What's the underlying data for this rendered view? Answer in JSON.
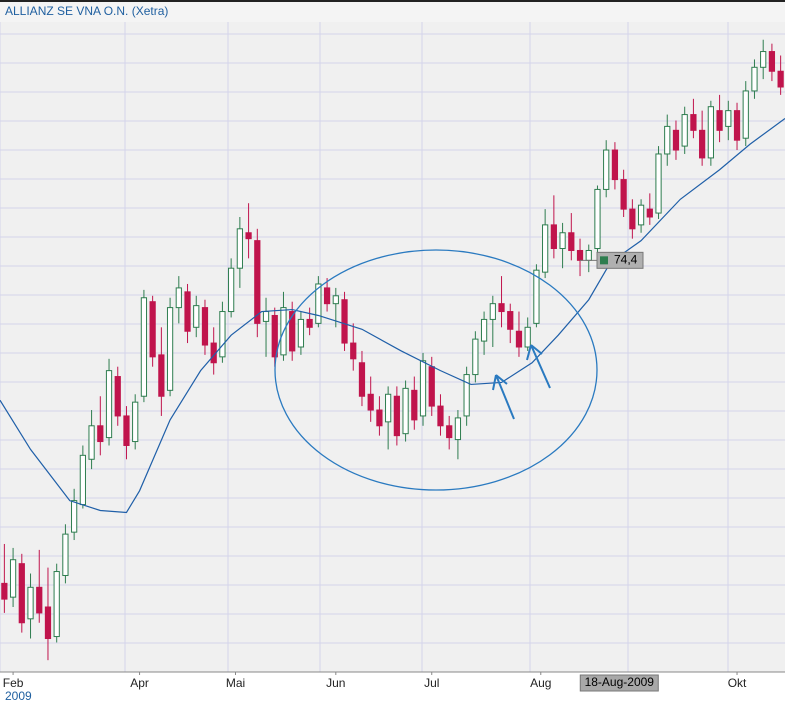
{
  "chart_data": {
    "type": "candlestick",
    "title": "ALLIANZ SE VNA O.N. (Xetra)",
    "xlim": [
      0,
      180
    ],
    "ylim": [
      53.5,
      86.5
    ],
    "xticks": [
      {
        "value": 3,
        "label": "Feb"
      },
      {
        "value": 32,
        "label": "Apr"
      },
      {
        "value": 54,
        "label": "Mai"
      },
      {
        "value": 77,
        "label": "Jun"
      },
      {
        "value": 99,
        "label": "Jul"
      },
      {
        "value": 124,
        "label": "Aug"
      },
      {
        "value": 169,
        "label": "Okt"
      }
    ],
    "year_label": "2009",
    "up_color": "#2e7d4f",
    "down_color": "#c0144c",
    "x": [
      1,
      3,
      5,
      7,
      9,
      11,
      13,
      15,
      17,
      19,
      21,
      23,
      25,
      27,
      29,
      31,
      33,
      35,
      37,
      39,
      41,
      43,
      45,
      47,
      49,
      51,
      53,
      55,
      57,
      59,
      61,
      63,
      65,
      67,
      69,
      71,
      73,
      75,
      77,
      79,
      81,
      83,
      85,
      87,
      89,
      91,
      93,
      95,
      97,
      99,
      101,
      103,
      105,
      107,
      109,
      111,
      113,
      115,
      117,
      119,
      121,
      123,
      125,
      127,
      129,
      131,
      133,
      135,
      137,
      139,
      141,
      143,
      145,
      147,
      149,
      151,
      153,
      155,
      157,
      159,
      161,
      163,
      165,
      167,
      169,
      171,
      173,
      175,
      177,
      179
    ],
    "open": [
      58.0,
      57.3,
      59.0,
      56.2,
      57.8,
      56.8,
      55.3,
      58.4,
      60.6,
      62.0,
      64.3,
      66.0,
      65.4,
      68.5,
      66.5,
      65.2,
      67.5,
      72.3,
      69.6,
      67.8,
      72.0,
      72.8,
      71.0,
      72.0,
      70.2,
      69.5,
      71.8,
      74.0,
      75.8,
      75.4,
      71.3,
      71.6,
      69.6,
      71.8,
      70.0,
      71.4,
      71.2,
      73.0,
      72.2,
      72.4,
      70.2,
      69.2,
      67.6,
      66.8,
      66.2,
      67.5,
      65.6,
      67.8,
      66.5,
      69.0,
      67.0,
      66.0,
      65.3,
      66.5,
      68.6,
      70.3,
      71.4,
      72.2,
      71.8,
      70.8,
      70.0,
      71.2,
      73.8,
      76.2,
      75.0,
      75.8,
      74.9,
      74.4,
      75.0,
      78.0,
      80.0,
      78.5,
      77.0,
      76.2,
      77.0,
      76.8,
      79.8,
      81.0,
      80.2,
      81.8,
      81.0,
      79.6,
      82.0,
      81.2,
      82.0,
      80.6,
      83.0,
      84.2,
      85.0,
      84.0
    ],
    "high": [
      60.0,
      59.8,
      59.5,
      58.5,
      59.7,
      58.8,
      59.0,
      61.0,
      62.8,
      65.0,
      66.8,
      67.5,
      69.4,
      69.0,
      67.0,
      67.6,
      72.9,
      72.6,
      71.0,
      72.5,
      73.6,
      73.2,
      72.6,
      72.4,
      71.0,
      72.3,
      74.5,
      76.6,
      77.3,
      76.0,
      72.5,
      72.0,
      72.8,
      72.3,
      71.8,
      72.0,
      73.6,
      73.5,
      73.0,
      72.8,
      71.2,
      69.8,
      68.5,
      67.5,
      68.0,
      68.0,
      68.3,
      68.5,
      69.7,
      69.5,
      67.6,
      66.5,
      66.8,
      69.0,
      70.8,
      71.8,
      72.6,
      73.6,
      72.2,
      71.8,
      71.5,
      74.2,
      77.0,
      77.7,
      76.3,
      76.8,
      75.5,
      75.2,
      78.2,
      80.5,
      80.4,
      79.0,
      77.5,
      77.5,
      77.8,
      80.2,
      81.8,
      81.5,
      82.2,
      82.6,
      82.0,
      82.5,
      82.8,
      82.5,
      82.4,
      83.5,
      84.6,
      85.6,
      85.4,
      84.8
    ],
    "low": [
      56.5,
      56.8,
      55.5,
      55.2,
      56.0,
      54.1,
      55.0,
      58.0,
      60.2,
      61.8,
      63.8,
      64.5,
      65.0,
      66.0,
      64.3,
      64.8,
      67.2,
      69.0,
      66.5,
      67.5,
      71.2,
      70.2,
      70.5,
      69.6,
      68.6,
      69.2,
      71.5,
      73.0,
      74.5,
      70.5,
      69.5,
      69.0,
      69.3,
      69.3,
      69.6,
      70.6,
      71.0,
      71.8,
      71.0,
      69.8,
      68.8,
      67.0,
      66.2,
      65.5,
      64.8,
      65.0,
      65.2,
      65.8,
      66.0,
      66.5,
      65.5,
      64.8,
      64.3,
      66.0,
      68.2,
      69.6,
      70.0,
      71.0,
      70.2,
      69.5,
      69.8,
      71.0,
      73.5,
      74.5,
      74.0,
      74.4,
      73.6,
      73.8,
      74.8,
      77.6,
      78.0,
      76.6,
      75.5,
      75.8,
      76.2,
      76.5,
      79.2,
      79.5,
      79.8,
      80.6,
      79.2,
      79.2,
      80.4,
      80.5,
      80.0,
      80.2,
      82.6,
      83.6,
      83.5,
      82.8
    ],
    "close": [
      57.2,
      59.2,
      56.0,
      57.8,
      56.5,
      55.2,
      58.6,
      60.5,
      62.2,
      64.5,
      66.0,
      65.2,
      68.8,
      66.5,
      65.0,
      67.2,
      72.5,
      69.5,
      67.5,
      72.0,
      73.0,
      70.8,
      72.1,
      70.1,
      69.2,
      71.8,
      74.0,
      76.0,
      75.5,
      71.2,
      71.8,
      69.5,
      72.0,
      69.8,
      71.4,
      71.0,
      73.2,
      72.2,
      72.6,
      70.2,
      69.4,
      67.5,
      66.8,
      66.0,
      67.6,
      65.5,
      67.9,
      66.3,
      69.3,
      67.0,
      66.0,
      65.4,
      66.4,
      68.6,
      70.4,
      71.4,
      72.2,
      71.8,
      70.9,
      70.0,
      71.0,
      73.9,
      76.2,
      75.0,
      75.8,
      74.9,
      74.4,
      74.9,
      78.0,
      80.0,
      78.5,
      77.0,
      76.0,
      77.2,
      76.6,
      79.8,
      81.2,
      80.0,
      81.8,
      81.0,
      79.6,
      82.2,
      81.0,
      82.0,
      80.5,
      83.0,
      84.2,
      85.0,
      84.0,
      83.2
    ],
    "moving_average": {
      "color": "#1f5fa8",
      "x": [
        0,
        7,
        16,
        23,
        29,
        32,
        39,
        46,
        53,
        60,
        67,
        73,
        83,
        92,
        101,
        108,
        115,
        122,
        128,
        135,
        140,
        147,
        156,
        165,
        172,
        180
      ],
      "values": [
        67.3,
        64.8,
        62.2,
        61.7,
        61.6,
        62.7,
        66.3,
        68.8,
        70.6,
        71.8,
        71.9,
        71.6,
        70.9,
        69.8,
        68.8,
        68.1,
        68.2,
        69.2,
        70.6,
        72.4,
        74.3,
        75.4,
        77.5,
        79.0,
        80.3,
        81.6
      ]
    },
    "price_marker": {
      "value": 74.4,
      "label": "74,4"
    },
    "cursor": {
      "x": 142,
      "label": "18-Aug-2009"
    }
  }
}
